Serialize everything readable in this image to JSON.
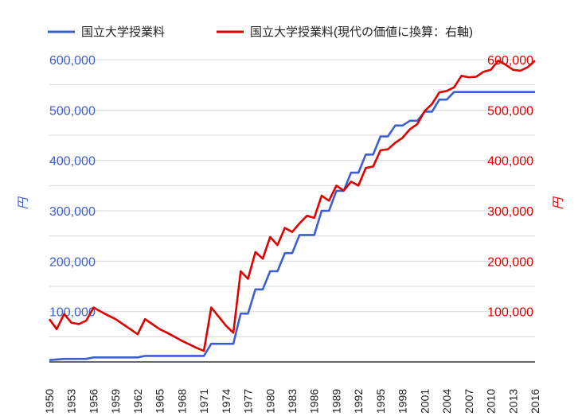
{
  "chart_data": {
    "type": "line",
    "title": "",
    "legend_position": "top",
    "colors": {
      "nominal": "#3c5fcf",
      "adjusted": "#e00000",
      "grid": "#d8d8d8"
    },
    "series": [
      {
        "name": "国立大学授業料",
        "axis": "left"
      },
      {
        "name": "国立大学授業料(現代の価値に換算：右軸)",
        "axis": "right"
      }
    ],
    "y_left": {
      "label": "円",
      "ylim": [
        0,
        600000
      ],
      "ticks": [
        "100,000",
        "200,000",
        "300,000",
        "400,000",
        "500,000",
        "600,000"
      ]
    },
    "y_right": {
      "label": "円",
      "ylim": [
        0,
        600000
      ],
      "ticks": [
        "100,000",
        "200,000",
        "300,000",
        "400,000",
        "500,000",
        "600,000"
      ]
    },
    "x_ticks": [
      "1950",
      "1953",
      "1956",
      "1959",
      "1962",
      "1965",
      "1968",
      "1971",
      "1974",
      "1977",
      "1980",
      "1983",
      "1986",
      "1989",
      "1992",
      "1995",
      "1998",
      "2001",
      "2004",
      "2007",
      "2010",
      "2013",
      "2016"
    ],
    "xlim": [
      1950,
      2016
    ],
    "nominal_points": [
      [
        1950,
        3600
      ],
      [
        1952,
        6000
      ],
      [
        1955,
        6000
      ],
      [
        1956,
        9000
      ],
      [
        1962,
        9000
      ],
      [
        1963,
        12000
      ],
      [
        1971,
        12000
      ],
      [
        1972,
        36000
      ],
      [
        1975,
        36000
      ],
      [
        1976,
        96000
      ],
      [
        1977,
        96000
      ],
      [
        1978,
        144000
      ],
      [
        1979,
        144000
      ],
      [
        1980,
        180000
      ],
      [
        1981,
        180000
      ],
      [
        1982,
        216000
      ],
      [
        1983,
        216000
      ],
      [
        1984,
        252000
      ],
      [
        1986,
        252000
      ],
      [
        1987,
        300000
      ],
      [
        1988,
        300000
      ],
      [
        1989,
        339600
      ],
      [
        1990,
        339600
      ],
      [
        1991,
        375600
      ],
      [
        1992,
        375600
      ],
      [
        1993,
        411600
      ],
      [
        1994,
        411600
      ],
      [
        1995,
        447600
      ],
      [
        1996,
        447600
      ],
      [
        1997,
        469200
      ],
      [
        1998,
        469200
      ],
      [
        1999,
        478800
      ],
      [
        2000,
        478800
      ],
      [
        2001,
        496800
      ],
      [
        2002,
        496800
      ],
      [
        2003,
        520800
      ],
      [
        2004,
        520800
      ],
      [
        2005,
        535800
      ],
      [
        2016,
        535800
      ]
    ],
    "adjusted_points": [
      [
        1950,
        85000
      ],
      [
        1951,
        65000
      ],
      [
        1952,
        95000
      ],
      [
        1953,
        78000
      ],
      [
        1954,
        75000
      ],
      [
        1955,
        82000
      ],
      [
        1956,
        108000
      ],
      [
        1957,
        100000
      ],
      [
        1958,
        92000
      ],
      [
        1959,
        85000
      ],
      [
        1960,
        75000
      ],
      [
        1961,
        65000
      ],
      [
        1962,
        55000
      ],
      [
        1963,
        85000
      ],
      [
        1964,
        75000
      ],
      [
        1965,
        65000
      ],
      [
        1966,
        58000
      ],
      [
        1967,
        50000
      ],
      [
        1968,
        42000
      ],
      [
        1969,
        35000
      ],
      [
        1970,
        28000
      ],
      [
        1971,
        22000
      ],
      [
        1972,
        108000
      ],
      [
        1973,
        90000
      ],
      [
        1974,
        72000
      ],
      [
        1975,
        58000
      ],
      [
        1976,
        180000
      ],
      [
        1977,
        165000
      ],
      [
        1978,
        218000
      ],
      [
        1979,
        205000
      ],
      [
        1980,
        248000
      ],
      [
        1981,
        232000
      ],
      [
        1982,
        266000
      ],
      [
        1983,
        258000
      ],
      [
        1984,
        275000
      ],
      [
        1985,
        290000
      ],
      [
        1986,
        286000
      ],
      [
        1987,
        330000
      ],
      [
        1988,
        320000
      ],
      [
        1989,
        350000
      ],
      [
        1990,
        340000
      ],
      [
        1991,
        358000
      ],
      [
        1992,
        350000
      ],
      [
        1993,
        385000
      ],
      [
        1994,
        388000
      ],
      [
        1995,
        420000
      ],
      [
        1996,
        422000
      ],
      [
        1997,
        435000
      ],
      [
        1998,
        445000
      ],
      [
        1999,
        462000
      ],
      [
        2000,
        472000
      ],
      [
        2001,
        498000
      ],
      [
        2002,
        512000
      ],
      [
        2003,
        535000
      ],
      [
        2004,
        538000
      ],
      [
        2005,
        545000
      ],
      [
        2006,
        568000
      ],
      [
        2007,
        565000
      ],
      [
        2008,
        566000
      ],
      [
        2009,
        576000
      ],
      [
        2010,
        580000
      ],
      [
        2011,
        598000
      ],
      [
        2012,
        590000
      ],
      [
        2013,
        580000
      ],
      [
        2014,
        578000
      ],
      [
        2015,
        585000
      ],
      [
        2016,
        598000
      ]
    ]
  }
}
